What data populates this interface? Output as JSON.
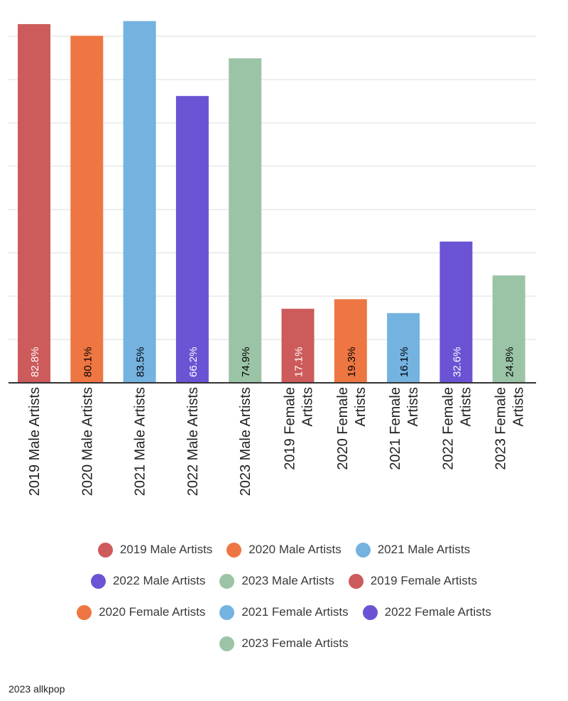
{
  "chart_data": {
    "type": "bar",
    "categories": [
      "2019 Male Artists",
      "2020 Male Artists",
      "2021 Male Artists",
      "2022 Male Artists",
      "2023 Male Artists",
      "2019 Female Artists",
      "2020 Female Artists",
      "2021 Female Artists",
      "2022 Female Artists",
      "2023 Female Artists"
    ],
    "values": [
      82.8,
      80.1,
      83.5,
      66.2,
      74.9,
      17.1,
      19.3,
      16.1,
      32.6,
      24.8
    ],
    "value_labels": [
      "82.8%",
      "80.1%",
      "83.5%",
      "66.2%",
      "74.9%",
      "17.1%",
      "19.3%",
      "16.1%",
      "32.6%",
      "24.8%"
    ],
    "tick_lines": [
      [
        "2019 Male Artists"
      ],
      [
        "2020 Male Artists"
      ],
      [
        "2021 Male Artists"
      ],
      [
        "2022 Male Artists"
      ],
      [
        "2023 Male Artists"
      ],
      [
        "2019 Female",
        "Artists"
      ],
      [
        "2020 Female",
        "Artists"
      ],
      [
        "2021 Female",
        "Artists"
      ],
      [
        "2022 Female",
        "Artists"
      ],
      [
        "2023 Female",
        "Artists"
      ]
    ],
    "colors": [
      "#cd5b5c",
      "#ee7643",
      "#74b2e0",
      "#6b53d4",
      "#9bc4a6",
      "#cd5b5c",
      "#ee7643",
      "#74b2e0",
      "#6b53d4",
      "#9bc4a6"
    ],
    "label_colors": [
      "#ffffff",
      "#000000",
      "#000000",
      "#ffffff",
      "#000000",
      "#ffffff",
      "#000000",
      "#000000",
      "#ffffff",
      "#000000"
    ],
    "ylim": [
      0,
      85
    ],
    "grid": true,
    "gridline_step": 10,
    "legend_position": "bottom",
    "title": "",
    "xlabel": "",
    "ylabel": ""
  },
  "legend_rows": [
    [
      0,
      1,
      2
    ],
    [
      3,
      4,
      5
    ],
    [
      6,
      7,
      8
    ],
    [
      9
    ]
  ],
  "source": "2023 allkpop"
}
